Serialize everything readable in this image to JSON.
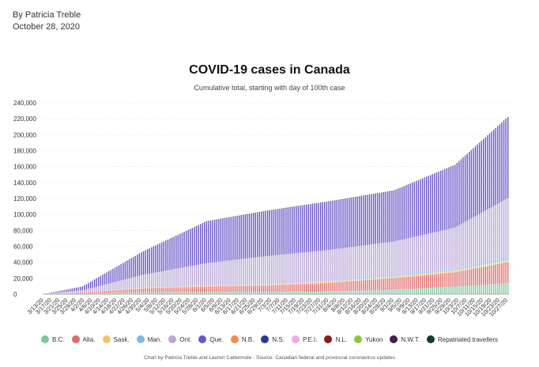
{
  "byline": {
    "author": "By Patricia Treble",
    "date": "October 28, 2020"
  },
  "credit": "Chart by Patricia Treble and Lauren Cattermole · Source: Canadian federal and provincial coronavirus updates",
  "chart_data": {
    "type": "bar",
    "stacked": true,
    "title": "COVID-19 cases in Canada",
    "subtitle": "Cumulative total, starting with day of 100th case",
    "xlabel": "",
    "ylabel": "",
    "ylim": [
      0,
      240000
    ],
    "yticks": [
      0,
      20000,
      40000,
      60000,
      80000,
      100000,
      120000,
      140000,
      160000,
      180000,
      200000,
      220000,
      240000
    ],
    "ytick_labels": [
      "0",
      "20,000",
      "40,000",
      "60,000",
      "80,000",
      "100,000",
      "120,000",
      "140,000",
      "160,000",
      "180,000",
      "200,000",
      "220,000",
      "240,000"
    ],
    "grid": true,
    "legend_position": "bottom",
    "x_start": "3/13/20",
    "x_end": "10/27/20",
    "x_tick_labels": [
      "3/13/20",
      "3/17/20",
      "3/21/20",
      "3/25/20",
      "3/29/20",
      "4/2/20",
      "4/6/20",
      "4/10/20",
      "4/14/20",
      "4/18/20",
      "4/22/20",
      "4/26/20",
      "4/30/20",
      "5/4/20",
      "5/8/20",
      "5/12/20",
      "5/16/20",
      "5/20/20",
      "5/24/20",
      "5/28/20",
      "6/1/20",
      "6/5/20",
      "6/9/20",
      "6/13/20",
      "6/17/20",
      "6/21/20",
      "6/25/20",
      "6/29/20",
      "7/3/20",
      "7/7/20",
      "7/11/20",
      "7/15/20",
      "7/19/20",
      "7/23/20",
      "7/27/20",
      "7/31/20",
      "8/4/20",
      "8/8/20",
      "8/12/20",
      "8/16/20",
      "8/20/20",
      "8/24/20",
      "8/28/20",
      "9/1/20",
      "9/5/20",
      "9/9/20",
      "9/13/20",
      "9/17/20",
      "9/21/20",
      "9/25/20",
      "9/29/20",
      "10/3/20",
      "10/7/20",
      "10/11/20",
      "10/15/20",
      "10/19/20",
      "10/23/20",
      "10/27/20"
    ],
    "series": [
      {
        "name": "B.C.",
        "color": "#7fc7a0",
        "points": [
          [
            "3/13/20",
            60
          ],
          [
            "4/1/20",
            1070
          ],
          [
            "5/1/20",
            2170
          ],
          [
            "6/1/20",
            2600
          ],
          [
            "7/1/20",
            2940
          ],
          [
            "8/1/20",
            3640
          ],
          [
            "9/1/20",
            5790
          ],
          [
            "10/1/20",
            9380
          ],
          [
            "10/27/20",
            14000
          ]
        ]
      },
      {
        "name": "Alta.",
        "color": "#e06c6c",
        "points": [
          [
            "3/13/20",
            20
          ],
          [
            "4/1/20",
            1080
          ],
          [
            "5/1/20",
            5160
          ],
          [
            "6/1/20",
            7000
          ],
          [
            "7/1/20",
            8200
          ],
          [
            "8/1/20",
            10900
          ],
          [
            "9/1/20",
            14400
          ],
          [
            "10/1/20",
            18300
          ],
          [
            "10/27/20",
            26200
          ]
        ]
      },
      {
        "name": "Sask.",
        "color": "#edc66b",
        "points": [
          [
            "3/13/20",
            2
          ],
          [
            "4/1/20",
            180
          ],
          [
            "5/1/20",
            390
          ],
          [
            "6/1/20",
            650
          ],
          [
            "7/1/20",
            800
          ],
          [
            "8/1/20",
            1350
          ],
          [
            "9/1/20",
            1620
          ],
          [
            "10/1/20",
            1930
          ],
          [
            "10/27/20",
            2650
          ]
        ]
      },
      {
        "name": "Man.",
        "color": "#77bde6",
        "points": [
          [
            "3/13/20",
            4
          ],
          [
            "4/1/20",
            130
          ],
          [
            "5/1/20",
            280
          ],
          [
            "6/1/20",
            300
          ],
          [
            "7/1/20",
            320
          ],
          [
            "8/1/20",
            440
          ],
          [
            "9/1/20",
            1250
          ],
          [
            "10/1/20",
            2000
          ],
          [
            "10/27/20",
            4700
          ]
        ]
      },
      {
        "name": "Ont.",
        "color": "#b9a7d6",
        "points": [
          [
            "3/13/20",
            80
          ],
          [
            "4/1/20",
            2400
          ],
          [
            "5/1/20",
            16500
          ],
          [
            "6/1/20",
            28500
          ],
          [
            "7/1/20",
            35700
          ],
          [
            "8/1/20",
            39500
          ],
          [
            "9/1/20",
            43000
          ],
          [
            "10/1/20",
            52000
          ],
          [
            "10/27/20",
            73000
          ]
        ]
      },
      {
        "name": "Que.",
        "color": "#6a55c7",
        "points": [
          [
            "3/13/20",
            17
          ],
          [
            "4/1/20",
            4600
          ],
          [
            "5/1/20",
            28000
          ],
          [
            "6/1/20",
            51000
          ],
          [
            "7/1/20",
            55500
          ],
          [
            "8/1/20",
            59500
          ],
          [
            "9/1/20",
            62500
          ],
          [
            "10/1/20",
            77000
          ],
          [
            "10/27/20",
            100000
          ]
        ]
      },
      {
        "name": "N.B.",
        "color": "#f08a55",
        "points": [
          [
            "3/13/20",
            1
          ],
          [
            "4/1/20",
            68
          ],
          [
            "5/1/20",
            120
          ],
          [
            "6/1/20",
            130
          ],
          [
            "7/1/20",
            165
          ],
          [
            "8/1/20",
            170
          ],
          [
            "9/1/20",
            190
          ],
          [
            "10/1/20",
            200
          ],
          [
            "10/27/20",
            330
          ]
        ]
      },
      {
        "name": "N.S.",
        "color": "#2b3a8f",
        "points": [
          [
            "3/13/20",
            0
          ],
          [
            "4/1/20",
            190
          ],
          [
            "5/1/20",
            960
          ],
          [
            "6/1/20",
            1060
          ],
          [
            "7/1/20",
            1065
          ],
          [
            "8/1/20",
            1070
          ],
          [
            "9/1/20",
            1085
          ],
          [
            "10/1/20",
            1090
          ],
          [
            "10/27/20",
            1100
          ]
        ]
      },
      {
        "name": "P.E.I.",
        "color": "#f3a7e6",
        "points": [
          [
            "3/13/20",
            0
          ],
          [
            "4/1/20",
            21
          ],
          [
            "5/1/20",
            27
          ],
          [
            "6/1/20",
            27
          ],
          [
            "7/1/20",
            32
          ],
          [
            "8/1/20",
            36
          ],
          [
            "9/1/20",
            44
          ],
          [
            "10/1/20",
            59
          ],
          [
            "10/27/20",
            64
          ]
        ]
      },
      {
        "name": "N.L.",
        "color": "#8b1a1a",
        "points": [
          [
            "3/13/20",
            0
          ],
          [
            "4/1/20",
            150
          ],
          [
            "5/1/20",
            259
          ],
          [
            "6/1/20",
            260
          ],
          [
            "7/1/20",
            261
          ],
          [
            "8/1/20",
            266
          ],
          [
            "9/1/20",
            269
          ],
          [
            "10/1/20",
            273
          ],
          [
            "10/27/20",
            286
          ]
        ]
      },
      {
        "name": "Yukon",
        "color": "#8cc63f",
        "points": [
          [
            "3/13/20",
            0
          ],
          [
            "4/1/20",
            6
          ],
          [
            "5/1/20",
            11
          ],
          [
            "6/1/20",
            11
          ],
          [
            "7/1/20",
            11
          ],
          [
            "8/1/20",
            14
          ],
          [
            "9/1/20",
            15
          ],
          [
            "10/1/20",
            15
          ],
          [
            "10/27/20",
            22
          ]
        ]
      },
      {
        "name": "N.W.T.",
        "color": "#4a1d4a",
        "points": [
          [
            "3/13/20",
            0
          ],
          [
            "4/1/20",
            1
          ],
          [
            "5/1/20",
            5
          ],
          [
            "6/1/20",
            5
          ],
          [
            "7/1/20",
            5
          ],
          [
            "8/1/20",
            5
          ],
          [
            "9/1/20",
            5
          ],
          [
            "10/1/20",
            5
          ],
          [
            "10/27/20",
            5
          ]
        ]
      },
      {
        "name": "Repatriated travellers",
        "color": "#123b2a",
        "points": [
          [
            "3/13/20",
            0
          ],
          [
            "4/1/20",
            13
          ],
          [
            "5/1/20",
            13
          ],
          [
            "6/1/20",
            13
          ],
          [
            "7/1/20",
            13
          ],
          [
            "8/1/20",
            13
          ],
          [
            "9/1/20",
            13
          ],
          [
            "10/1/20",
            13
          ],
          [
            "10/27/20",
            13
          ]
        ]
      }
    ]
  }
}
